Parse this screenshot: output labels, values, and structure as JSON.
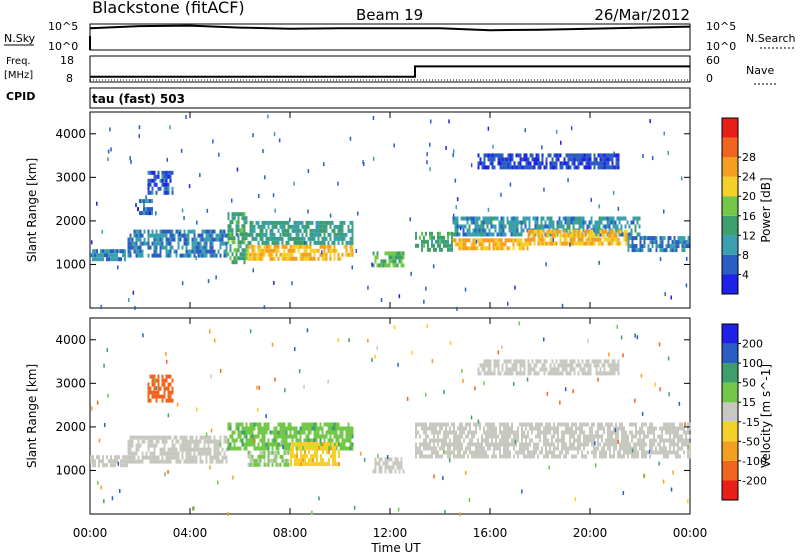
{
  "header": {
    "station": "Blackstone (fitACF)",
    "beam": "Beam 19",
    "date": "26/Mar/2012"
  },
  "noise_panel": {
    "left_label": "N.Sky",
    "left_tick_top": "10^5",
    "left_tick_bottom": "10^0",
    "right_label": "N.Search",
    "right_tick_top": "10^5",
    "right_tick_bottom": "10^0"
  },
  "freq_panel": {
    "left_label_line1": "Freq.",
    "left_label_line2": "[MHz]",
    "left_tick_top": "18",
    "left_tick_bottom": "8",
    "right_label": "Nave",
    "right_tick_top": "60",
    "right_tick_bottom": "0"
  },
  "cpid": {
    "label": "CPID",
    "value": "tau (fast) 503"
  },
  "xaxis": {
    "label": "Time UT",
    "ticks": [
      "00:00",
      "04:00",
      "08:00",
      "12:00",
      "16:00",
      "20:00",
      "00:00"
    ]
  },
  "chart_data": [
    {
      "type": "heatmap",
      "name": "power",
      "ylabel": "Slant Range [km]",
      "xlabel": "Time UT",
      "xlim": [
        "00:00",
        "24:00"
      ],
      "ylim": [
        0,
        4500
      ],
      "yticks": [
        1000,
        2000,
        3000,
        4000
      ],
      "colorbar": {
        "label": "Power [dB]",
        "ticks": [
          4,
          8,
          12,
          16,
          20,
          24,
          28
        ],
        "colors": [
          "#1e22e6",
          "#2c5dc4",
          "#3a9fae",
          "#3f9f6a",
          "#73c84a",
          "#f5d028",
          "#f59f22",
          "#f06620",
          "#e81e18"
        ]
      },
      "echo_regions": [
        {
          "t_start": 0.0,
          "t_end": 1.5,
          "range_low": 1050,
          "range_high": 1350,
          "power_db": 9
        },
        {
          "t_start": 1.5,
          "t_end": 5.5,
          "range_low": 1200,
          "range_high": 1800,
          "power_db": 8
        },
        {
          "t_start": 1.8,
          "t_end": 2.5,
          "range_low": 2100,
          "range_high": 2500,
          "power_db": 6
        },
        {
          "t_start": 2.3,
          "t_end": 3.3,
          "range_low": 2600,
          "range_high": 3150,
          "power_db": 6
        },
        {
          "t_start": 5.5,
          "t_end": 6.3,
          "range_low": 1000,
          "range_high": 2200,
          "power_db": 14
        },
        {
          "t_start": 6.3,
          "t_end": 10.5,
          "range_low": 1100,
          "range_high": 1450,
          "power_db": 24
        },
        {
          "t_start": 6.3,
          "t_end": 10.5,
          "range_low": 1450,
          "range_high": 2000,
          "power_db": 12
        },
        {
          "t_start": 11.3,
          "t_end": 12.6,
          "range_low": 900,
          "range_high": 1300,
          "power_db": 16
        },
        {
          "t_start": 13.0,
          "t_end": 14.5,
          "range_low": 1300,
          "range_high": 1750,
          "power_db": 14
        },
        {
          "t_start": 14.5,
          "t_end": 17.5,
          "range_low": 1350,
          "range_high": 1600,
          "power_db": 24
        },
        {
          "t_start": 14.5,
          "t_end": 22.0,
          "range_low": 1600,
          "range_high": 2100,
          "power_db": 10
        },
        {
          "t_start": 17.5,
          "t_end": 21.5,
          "range_low": 1450,
          "range_high": 1800,
          "power_db": 24
        },
        {
          "t_start": 21.5,
          "t_end": 24.0,
          "range_low": 1300,
          "range_high": 1650,
          "power_db": 8
        },
        {
          "t_start": 15.5,
          "t_end": 21.2,
          "range_low": 3150,
          "range_high": 3550,
          "power_db": 5
        }
      ]
    },
    {
      "type": "heatmap",
      "name": "velocity",
      "ylabel": "Slant Range [km]",
      "xlabel": "Time UT",
      "xlim": [
        "00:00",
        "24:00"
      ],
      "ylim": [
        0,
        4500
      ],
      "yticks": [
        1000,
        2000,
        3000,
        4000
      ],
      "colorbar": {
        "label": "Velocity [m s^-1]",
        "ticks": [
          -200,
          -100,
          -50,
          -15,
          15,
          50,
          100,
          200
        ],
        "colors": [
          "#e81e18",
          "#f06620",
          "#f59f22",
          "#f5d028",
          "#c8c8c0",
          "#73c84a",
          "#3f9f6a",
          "#2c5dc4",
          "#1e22e6"
        ]
      },
      "echo_regions": [
        {
          "t_start": 0.0,
          "t_end": 1.5,
          "range_low": 1050,
          "range_high": 1350,
          "velocity": 0
        },
        {
          "t_start": 1.5,
          "t_end": 5.5,
          "range_low": 1200,
          "range_high": 1800,
          "velocity": 0
        },
        {
          "t_start": 2.3,
          "t_end": 3.3,
          "range_low": 2600,
          "range_high": 3200,
          "velocity": -150
        },
        {
          "t_start": 5.5,
          "t_end": 10.5,
          "range_low": 1500,
          "range_high": 2100,
          "velocity": 40
        },
        {
          "t_start": 8.0,
          "t_end": 10.0,
          "range_low": 1100,
          "range_high": 1650,
          "velocity": -40
        },
        {
          "t_start": 6.3,
          "t_end": 8.0,
          "range_low": 1100,
          "range_high": 1450,
          "velocity": 20
        },
        {
          "t_start": 11.3,
          "t_end": 12.6,
          "range_low": 900,
          "range_high": 1300,
          "velocity": 0
        },
        {
          "t_start": 13.0,
          "t_end": 24.0,
          "range_low": 1300,
          "range_high": 2100,
          "velocity": 0
        },
        {
          "t_start": 15.5,
          "t_end": 21.2,
          "range_low": 3150,
          "range_high": 3550,
          "velocity": 0
        }
      ]
    }
  ],
  "frequency_series": {
    "x_hours": [
      0.0,
      13.0,
      13.0,
      24.0
    ],
    "freq_mhz": [
      10.0,
      10.0,
      14.0,
      14.0
    ]
  },
  "noise_series": {
    "x_hours": [
      0,
      2,
      4,
      6,
      8,
      10,
      12,
      14,
      16,
      18,
      20,
      22,
      24
    ],
    "log_value": [
      4.2,
      4.6,
      4.7,
      4.3,
      4.1,
      4.2,
      4.2,
      4.2,
      3.8,
      3.9,
      4.1,
      4.3,
      4.5
    ]
  }
}
